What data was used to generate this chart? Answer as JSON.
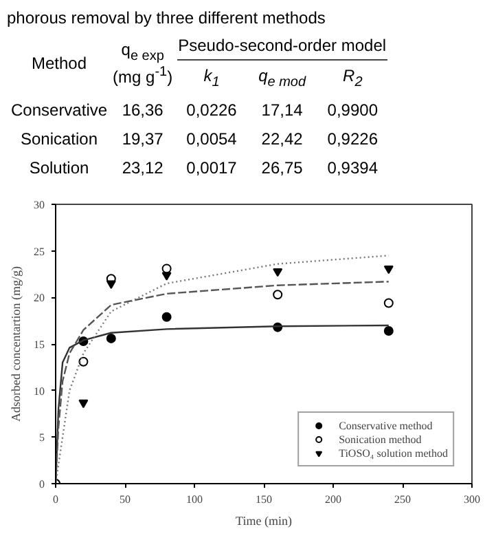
{
  "chart_data": {
    "type": "scatter",
    "title": "phorous removal by three different methods",
    "annotations": [
      "Method",
      "q$_{e exp}$",
      "(mg g$^{-1}$)",
      "Pseudo-second-order model",
      "k$_{1}$",
      "q$_{e mod}$",
      "R$_{2}$",
      "Conservative",
      "16,36",
      "0,0226",
      "17,14",
      "0,9900",
      "Sonication",
      "19,37",
      "0,0054",
      "22,42",
      "0,9226",
      "Solution",
      "23,12",
      "0,0017",
      "26,75",
      "0,9394"
    ],
    "xlabel": "Time (min)",
    "ylabel": "Adsorbed concentartion (mg/g)",
    "xlim": [
      0,
      300
    ],
    "xticks": [
      0,
      50,
      100,
      150,
      200,
      250,
      300
    ],
    "ylim": [
      0,
      30
    ],
    "yticks": [
      0,
      5,
      10,
      15,
      20,
      25,
      30
    ],
    "grid": false,
    "legend": "bottom right",
    "series": [
      {
        "name": "Conservative method",
        "color": "#000000",
        "marker": "circle",
        "x": [
          0,
          20,
          40,
          80,
          160,
          240
        ],
        "values": [
          0,
          15.3,
          15.6,
          17.9,
          16.8,
          16.4
        ]
      },
      {
        "name": "Sonication method",
        "color": "#ffffff",
        "marker": "circle",
        "x": [
          0,
          20,
          40,
          80,
          160,
          240
        ],
        "values": [
          0,
          13.1,
          22.0,
          23.1,
          20.3,
          19.4
        ]
      },
      {
        "name": "TiOSO₄ solution method",
        "color": "#000000",
        "marker": "triangle",
        "x": [
          20,
          40,
          80,
          160,
          240
        ],
        "values": [
          8.7,
          21.5,
          22.4,
          22.8,
          23.1
        ]
      },
      {
        "type": "line",
        "color": "#333333",
        "line_style": "solid",
        "x": [
          0,
          2,
          5,
          10,
          20,
          40,
          80,
          160,
          240
        ],
        "values": [
          0,
          8,
          13,
          14.6,
          15.4,
          16.2,
          16.6,
          16.9,
          17.0
        ]
      },
      {
        "type": "line",
        "color": "#555555",
        "line_style": "dashed",
        "x": [
          0,
          2,
          5,
          10,
          20,
          40,
          80,
          160,
          240
        ],
        "values": [
          0,
          6,
          11,
          14,
          16.5,
          19.2,
          20.4,
          21.3,
          21.7
        ]
      },
      {
        "type": "line",
        "color": "#777777",
        "line_style": "dotted",
        "x": [
          0,
          5,
          10,
          20,
          40,
          80,
          160,
          240
        ],
        "values": [
          0,
          5,
          10,
          14,
          18.5,
          21.5,
          23.6,
          24.5
        ]
      }
    ]
  }
}
